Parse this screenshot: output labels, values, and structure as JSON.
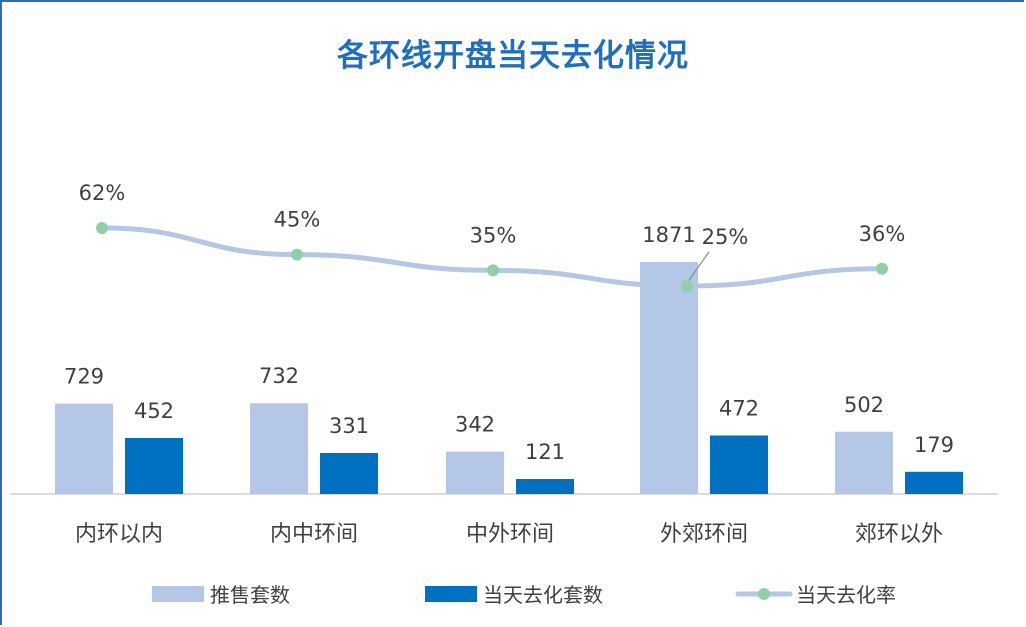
{
  "chart_data": {
    "type": "bar",
    "title": "各环线开盘当天去化情况",
    "categories": [
      "内环以内",
      "内中环间",
      "中外环间",
      "外郊环间",
      "郊环以外"
    ],
    "series": [
      {
        "name": "推售套数",
        "type": "bar",
        "values": [
          729,
          732,
          342,
          1871,
          502
        ]
      },
      {
        "name": "当天去化套数",
        "type": "bar",
        "values": [
          452,
          331,
          121,
          472,
          179
        ]
      },
      {
        "name": "当天去化率",
        "type": "line",
        "values": [
          62,
          45,
          35,
          25,
          36
        ],
        "labels": [
          "62%",
          "45%",
          "35%",
          "25%",
          "36%"
        ]
      }
    ],
    "ylim": [
      0,
      1871
    ],
    "y2lim": [
      0,
      100
    ],
    "legend": "bottom",
    "grid": false,
    "colors": {
      "推售套数": "#b4c7e7",
      "当天去化套数": "#0070c0",
      "当天去化率": "#b4c7e7",
      "line_marker": "#8fd0a8"
    }
  }
}
